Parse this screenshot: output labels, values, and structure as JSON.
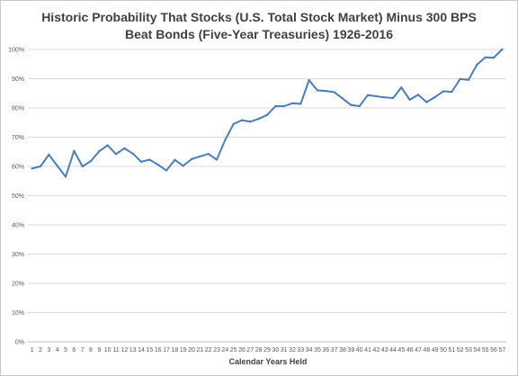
{
  "chart_data": {
    "type": "line",
    "title": [
      "Historic Probability That Stocks (U.S. Total Stock Market) Minus 300 BPS",
      "Beat Bonds (Five-Year Treasuries) 1926-2016"
    ],
    "xlabel": "Calendar Years Held",
    "ylabel": "",
    "ylim": [
      0,
      100
    ],
    "yticks": [
      0,
      10,
      20,
      30,
      40,
      50,
      60,
      70,
      80,
      90,
      100
    ],
    "ytick_labels": [
      "0%",
      "10%",
      "20%",
      "30%",
      "40%",
      "50%",
      "60%",
      "70%",
      "80%",
      "90%",
      "100%"
    ],
    "grid": true,
    "legend": "none",
    "color": "#4a7ebb",
    "categories": [
      "1",
      "2",
      "3",
      "4",
      "5",
      "6",
      "7",
      "8",
      "9",
      "10",
      "11",
      "12",
      "13",
      "14",
      "15",
      "16",
      "17",
      "18",
      "19",
      "20",
      "21",
      "22",
      "23",
      "24",
      "25",
      "26",
      "27",
      "28",
      "29",
      "30",
      "31",
      "32",
      "33",
      "34",
      "35",
      "36",
      "37",
      "38",
      "39",
      "40",
      "41",
      "42",
      "43",
      "44",
      "45",
      "46",
      "47",
      "48",
      "49",
      "50",
      "51",
      "52",
      "53",
      "54",
      "55",
      "56",
      "57"
    ],
    "values": [
      59.3,
      60.0,
      64.0,
      60.2,
      56.5,
      65.3,
      60.0,
      61.8,
      65.2,
      67.2,
      64.2,
      66.2,
      64.4,
      61.6,
      62.3,
      60.6,
      58.6,
      62.2,
      60.2,
      62.5,
      63.4,
      64.3,
      62.3,
      69.0,
      74.5,
      75.8,
      75.3,
      76.3,
      77.6,
      80.6,
      80.6,
      81.6,
      81.4,
      89.5,
      86.0,
      85.8,
      85.4,
      83.2,
      81.0,
      80.6,
      84.4,
      84.0,
      83.6,
      83.4,
      87.0,
      82.8,
      84.5,
      82.0,
      83.7,
      85.7,
      85.5,
      89.9,
      89.6,
      94.8,
      97.3,
      97.2,
      100.0
    ]
  }
}
